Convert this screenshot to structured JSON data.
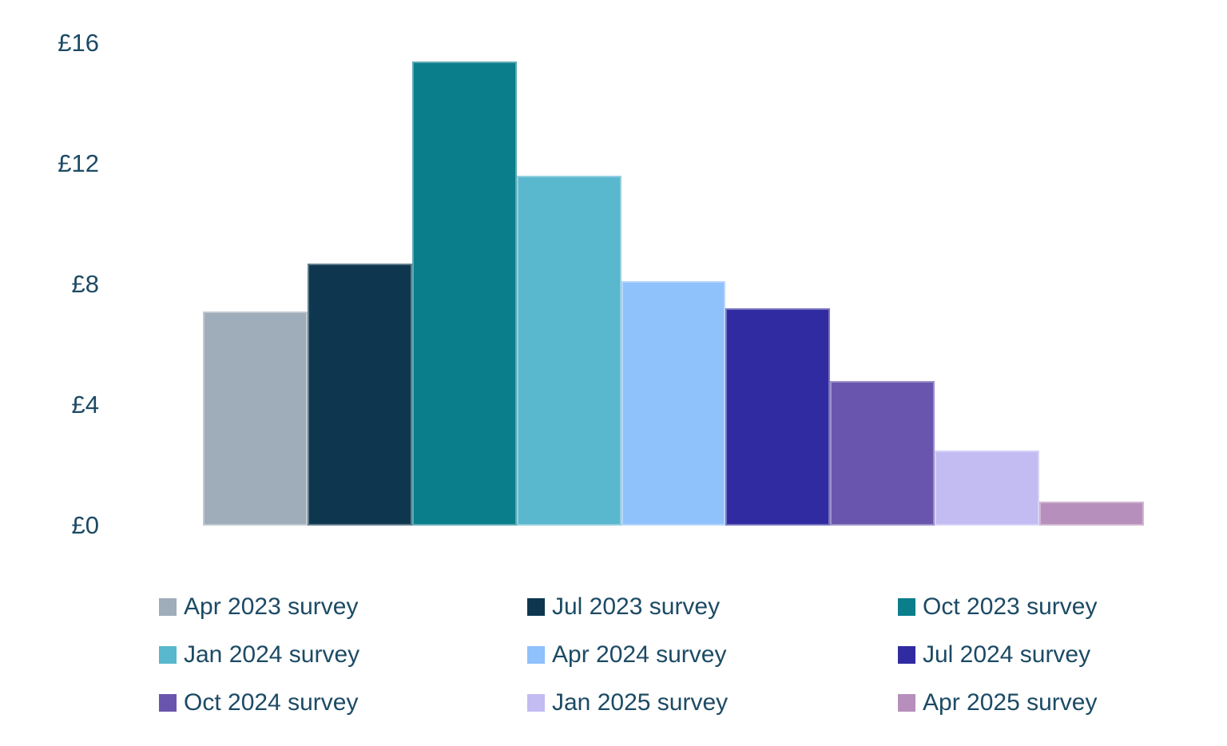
{
  "chart_data": {
    "type": "bar",
    "title": "",
    "xlabel": "",
    "ylabel": "",
    "currency_prefix": "£",
    "categories": [
      "Apr 2023 survey",
      "Jul 2023 survey",
      "Oct 2023 survey",
      "Jan 2024 survey",
      "Apr 2024 survey",
      "Jul 2024 survey",
      "Oct 2024 survey",
      "Jan 2025 survey",
      "Apr 2025 survey"
    ],
    "values": [
      7.1,
      8.7,
      15.4,
      11.6,
      8.1,
      7.2,
      4.8,
      2.5,
      0.8
    ],
    "colors": [
      "#9FACB9",
      "#0E374F",
      "#0A7E8B",
      "#59B7CE",
      "#8FC1FB",
      "#312BA1",
      "#6A55AE",
      "#C2BCF2",
      "#B78FBC"
    ],
    "ylim": [
      0,
      16
    ],
    "yticks": [
      0,
      4,
      8,
      12,
      16
    ],
    "ytick_labels": [
      "£0",
      "£4",
      "£8",
      "£12",
      "£16"
    ],
    "grid": false,
    "axis_lines": false,
    "legend_position": "bottom",
    "legend": [
      "Apr 2023 survey",
      "Jul 2023 survey",
      "Oct 2023 survey",
      "Jan 2024 survey",
      "Apr 2024 survey",
      "Jul 2024 survey",
      "Oct 2024 survey",
      "Jan 2025 survey",
      "Apr 2025 survey"
    ]
  },
  "style": {
    "text_color": "#1C4A64",
    "background_color": "#FFFFFF"
  }
}
